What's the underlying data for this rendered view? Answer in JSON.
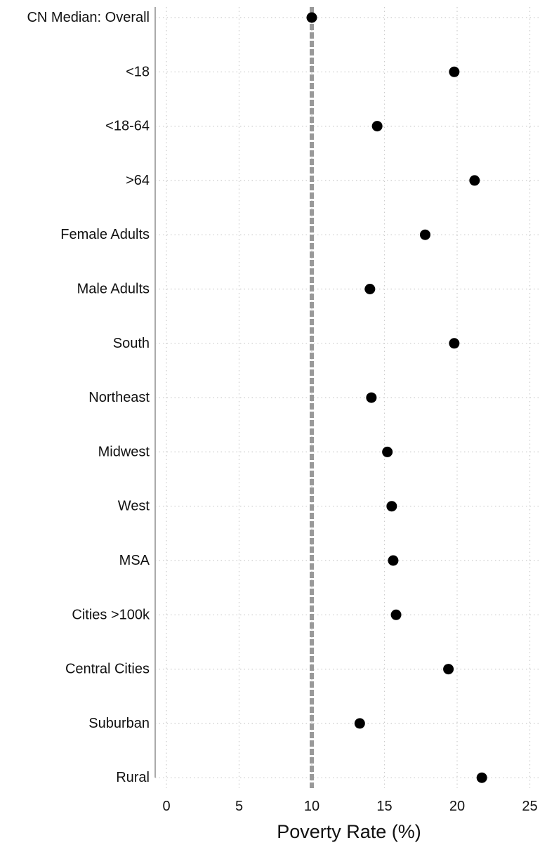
{
  "chart_data": {
    "type": "scatter",
    "xlabel": "Poverty Rate (%)",
    "xlim": [
      -1,
      26
    ],
    "xticks": [
      0,
      5,
      10,
      15,
      20,
      25
    ],
    "grid": true,
    "reference_line": {
      "x": 10,
      "style": "dashed",
      "color": "#999999"
    },
    "marker_color": "#000000",
    "categories": [
      "CN Median: Overall",
      "<18",
      "<18-64",
      ">64",
      "Female Adults",
      "Male Adults",
      "South",
      "Northeast",
      "Midwest",
      "West",
      "MSA",
      "Cities >100k",
      "Central Cities",
      "Suburban",
      "Rural"
    ],
    "values": [
      10.0,
      19.8,
      14.5,
      21.2,
      17.8,
      14.0,
      19.8,
      14.1,
      15.2,
      15.5,
      15.6,
      15.8,
      19.4,
      13.3,
      21.7
    ]
  }
}
